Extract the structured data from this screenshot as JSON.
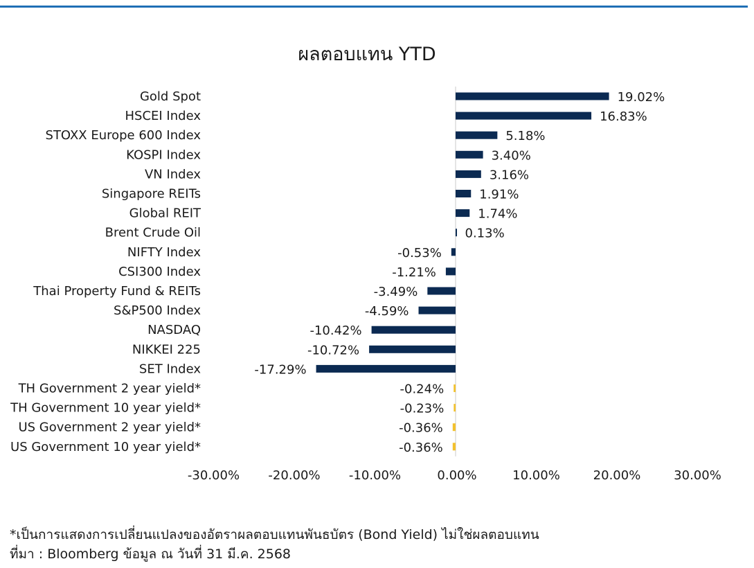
{
  "colors": {
    "accent": "#1f6fb5",
    "equity": "#0b2a52",
    "yield": "#f2c12e",
    "axis": "#c8c8c8"
  },
  "chart_data": {
    "type": "bar",
    "orientation": "horizontal",
    "title": "ผลตอบแทน YTD",
    "categories": [
      "Gold Spot",
      "HSCEI Index",
      "STOXX Europe 600 Index",
      "KOSPI Index",
      "VN Index",
      "Singapore REITs",
      "Global REIT",
      "Brent Crude Oil",
      "NIFTY Index",
      "CSI300 Index",
      "Thai Property Fund & REITs",
      "S&P500 Index",
      "NASDAQ",
      "NIKKEI 225",
      "SET Index",
      "TH Government 2 year yield*",
      "TH Government 10 year yield*",
      "US Government 2 year yield*",
      "US Government 10 year yield*"
    ],
    "values": [
      19.02,
      16.83,
      5.18,
      3.4,
      3.16,
      1.91,
      1.74,
      0.13,
      -0.53,
      -1.21,
      -3.49,
      -4.59,
      -10.42,
      -10.72,
      -17.29,
      -0.24,
      -0.23,
      -0.36,
      -0.36
    ],
    "data_labels": [
      "19.02%",
      "16.83%",
      "5.18%",
      "3.40%",
      "3.16%",
      "1.91%",
      "1.74%",
      "0.13%",
      "-0.53%",
      "-1.21%",
      "-3.49%",
      "-4.59%",
      "-10.42%",
      "-10.72%",
      "-17.29%",
      "-0.24%",
      "-0.23%",
      "-0.36%",
      "-0.36%"
    ],
    "bar_color_groups": [
      "equity",
      "equity",
      "equity",
      "equity",
      "equity",
      "equity",
      "equity",
      "equity",
      "equity",
      "equity",
      "equity",
      "equity",
      "equity",
      "equity",
      "equity",
      "yield",
      "yield",
      "yield",
      "yield"
    ],
    "xlim": [
      -30,
      30
    ],
    "xticks": [
      -30,
      -20,
      -10,
      0,
      10,
      20,
      30
    ],
    "xtick_labels": [
      "-30.00%",
      "-20.00%",
      "-10.00%",
      "0.00%",
      "10.00%",
      "20.00%",
      "30.00%"
    ],
    "grid": false,
    "legend": "none"
  },
  "footnotes": {
    "note": "*เป็นการแสดงการเปลี่ยนแปลงของอัตราผลตอบแทนพันธบัตร (Bond Yield) ไม่ใช่ผลตอบแทน",
    "source": "ที่มา : Bloomberg ข้อมูล ณ วันที่ 31 มี.ค. 2568"
  }
}
